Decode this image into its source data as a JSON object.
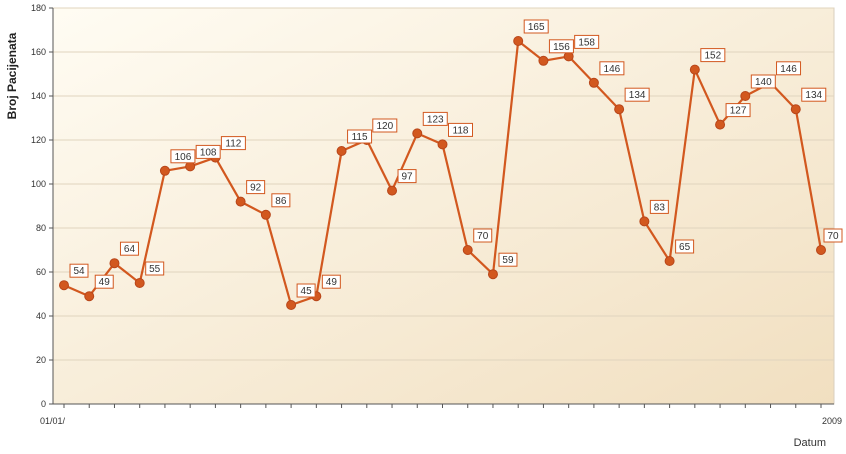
{
  "chart_data": {
    "type": "line",
    "ylabel": "Broj Pacijenata",
    "xlabel": "Datum",
    "ylim": [
      0,
      180
    ],
    "yticks": [
      0,
      20,
      40,
      60,
      80,
      100,
      120,
      140,
      160,
      180
    ],
    "x_first_label": "01/01/",
    "x_last_label": "2009",
    "grid": true,
    "legend": "none",
    "series": [
      {
        "values": [
          54,
          49,
          64,
          55,
          106,
          108,
          112,
          92,
          86,
          45,
          49,
          115,
          120,
          97,
          123,
          118,
          70,
          59,
          165,
          156,
          158,
          146,
          134,
          83,
          65,
          152,
          127,
          140,
          146,
          134,
          70
        ],
        "color": "#D2581F"
      }
    ],
    "colors": {
      "line": "#D2581F",
      "plot_bg_light": "#FFFCF3",
      "plot_bg_dark": "#F1DFC0",
      "grid": "#E0D4BE",
      "label_border": "#D2581F"
    }
  }
}
